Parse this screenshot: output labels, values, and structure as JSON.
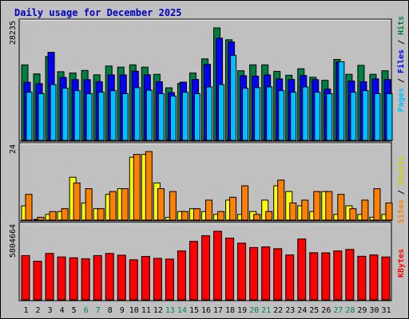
{
  "chart_data": {
    "title": "Daily usage for December 2025",
    "type": "bar",
    "x": [
      "1",
      "2",
      "3",
      "4",
      "5",
      "6",
      "7",
      "8",
      "9",
      "10",
      "11",
      "12",
      "13",
      "14",
      "15",
      "16",
      "17",
      "18",
      "19",
      "20",
      "21",
      "22",
      "23",
      "24",
      "25",
      "26",
      "27",
      "28",
      "29",
      "30",
      "31"
    ],
    "weekend_days": [
      "6",
      "7",
      "13",
      "14",
      "20",
      "21",
      "27",
      "28"
    ],
    "panels": [
      {
        "label": "Hits / Files / Pages",
        "max_label": "28235",
        "ymax": 28235,
        "series": [
          {
            "name": "Hits",
            "color": "#008040",
            "values": [
              18960,
              16690,
              21060,
              17240,
              16920,
              17560,
              16460,
              18670,
              18390,
              18960,
              18390,
              16580,
              13190,
              14310,
              16920,
              20460,
              28235,
              25260,
              17480,
              18960,
              18960,
              17330,
              16350,
              17980,
              15850,
              15080,
              20320,
              16580,
              18840,
              16580,
              17480
            ]
          },
          {
            "name": "Files",
            "color": "#0000FF",
            "values": [
              14590,
              14250,
              22110,
              15810,
              15250,
              15240,
              14740,
              16440,
              16440,
              17360,
              16470,
              14710,
              11990,
              14620,
              15290,
              19090,
              25670,
              24690,
              16250,
              16130,
              16440,
              15440,
              15290,
              16280,
              15250,
              12880,
              19730,
              14910,
              14710,
              15430,
              15270
            ]
          },
          {
            "name": "Pages",
            "color": "#00C0FF",
            "values": [
              12090,
              11730,
              13990,
              13090,
              12480,
              11730,
              12090,
              12480,
              11730,
              13250,
              12600,
              11730,
              11130,
              12090,
              11730,
              13420,
              13990,
              21350,
              13090,
              13250,
              13420,
              12480,
              12090,
              13420,
              12090,
              11730,
              19740,
              12090,
              12480,
              11730,
              11730
            ]
          }
        ]
      },
      {
        "label": "Sites / Visits",
        "max_label": "24",
        "ymax": 24,
        "series": [
          {
            "name": "Visits",
            "color": "#FFFF00",
            "values": [
              5,
              0,
              2,
              3,
              15,
              6,
              4,
              9,
              11,
              22,
              23,
              13,
              1,
              3,
              4,
              3,
              2,
              7,
              2,
              3,
              7,
              12,
              10,
              5,
              3,
              10,
              2,
              5,
              2,
              1,
              2
            ]
          },
          {
            "name": "Sites",
            "color": "#FF8000",
            "values": [
              9,
              1,
              3,
              4,
              13,
              11,
              4,
              10,
              11,
              23,
              24,
              11,
              10,
              3,
              4,
              7,
              3,
              8,
              12,
              2,
              3,
              14,
              6,
              7,
              10,
              10,
              9,
              4,
              7,
              11,
              6
            ]
          }
        ]
      },
      {
        "label": "KBytes",
        "max_label": "5804664",
        "ymax": 5804664,
        "series": [
          {
            "name": "KBytes",
            "color": "#FF0000",
            "values": [
              3750000,
              3270000,
              3930000,
              3630000,
              3560000,
              3480000,
              3750000,
              3930000,
              3780000,
              3390000,
              3680000,
              3510000,
              3450000,
              4140000,
              4950000,
              5430000,
              5804664,
              5230000,
              4800000,
              4430000,
              4480000,
              4330000,
              3800000,
              5150000,
              3990000,
              3980000,
              4140000,
              4270000,
              3690000,
              3800000,
              3630000
            ]
          }
        ]
      }
    ]
  }
}
